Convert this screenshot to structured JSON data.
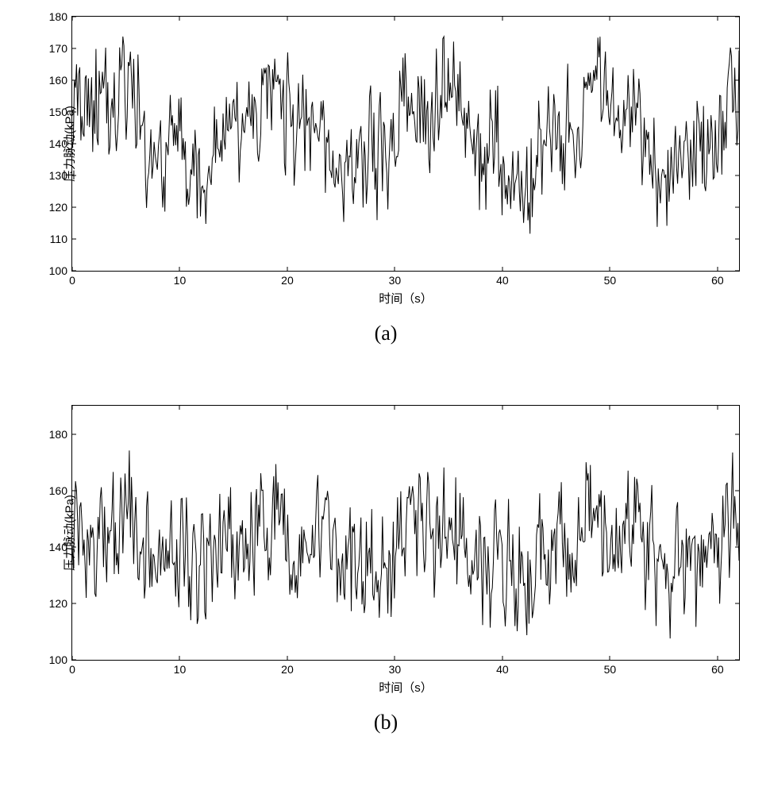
{
  "chart_a": {
    "type": "line",
    "xlabel": "时间（s）",
    "ylabel": "压力脉动(kPa)",
    "subcaption": "(a)",
    "xlim": [
      0,
      62
    ],
    "ylim": [
      100,
      180
    ],
    "xticks": [
      0,
      10,
      20,
      30,
      40,
      50,
      60
    ],
    "yticks": [
      100,
      110,
      120,
      130,
      140,
      150,
      160,
      170,
      180
    ],
    "line_color": "#000000",
    "line_width": 1,
    "background_color": "#ffffff",
    "border_color": "#000000",
    "tick_fontsize": 14,
    "label_fontsize": 15,
    "subcaption_fontsize": 26,
    "seed": 12345,
    "n_points": 620,
    "mean": 143,
    "noise_amp": 18,
    "low_freq_amp": 8
  },
  "chart_b": {
    "type": "line",
    "xlabel": "时间（s）",
    "ylabel": "压力脉动(kPa)",
    "subcaption": "(b)",
    "xlim": [
      0,
      62
    ],
    "ylim": [
      100,
      190
    ],
    "xticks": [
      0,
      10,
      20,
      30,
      40,
      50,
      60
    ],
    "yticks": [
      100,
      120,
      140,
      160,
      180
    ],
    "line_color": "#000000",
    "line_width": 1,
    "background_color": "#ffffff",
    "border_color": "#000000",
    "tick_fontsize": 14,
    "label_fontsize": 15,
    "subcaption_fontsize": 26,
    "seed": 67890,
    "n_points": 620,
    "mean": 140,
    "noise_amp": 22,
    "low_freq_amp": 6
  }
}
